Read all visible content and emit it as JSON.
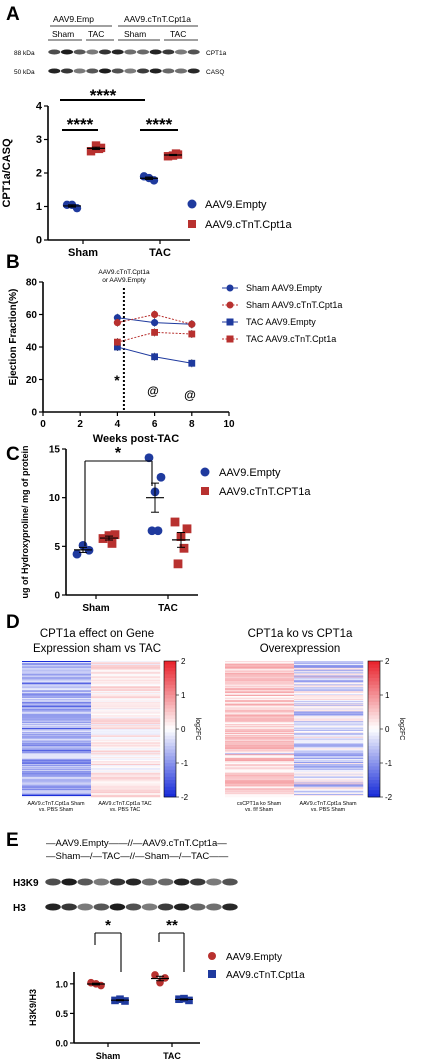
{
  "panels": {
    "A": {
      "letter": "A",
      "blot_group_left": "AAV9.Emp",
      "blot_group_right": "AAV9.cTnT.Cpt1a",
      "blot_subgroups": [
        "Sham",
        "TAC",
        "Sham",
        "TAC"
      ],
      "band_labels_left": [
        "88 kDa",
        "50 kDa"
      ],
      "band_labels_right": [
        "CPT1a",
        "CASQ"
      ],
      "significance": [
        "****",
        "****",
        "****"
      ],
      "legend": [
        "AAV9.Empty",
        "AAV9.cTnT.Cpt1a"
      ]
    },
    "B": {
      "letter": "B",
      "annotation": [
        "AAV9.cTnT.Cpt1a",
        "or AAV9.Empty"
      ],
      "markers": [
        "*",
        "@",
        "@"
      ],
      "legend": [
        "Sham AAV9.Empty",
        "Sham AAV9.cTnT.Cpt1a",
        "TAC AAV9.Empty",
        "TAC AAV9.cTnT.Cpt1a"
      ]
    },
    "C": {
      "letter": "C",
      "significance": "*",
      "legend": [
        "AAV9.Empty",
        "AAV9.cTnT.CPT1a"
      ]
    },
    "D": {
      "letter": "D",
      "heatmap1_title": [
        "CPT1a effect on Gene",
        "Expression sham vs TAC"
      ],
      "heatmap1_cols": [
        [
          "AAV9.cTnT.Cpt1a Sham",
          "vs. PBS Sham"
        ],
        [
          "AAV9.cTnT.Cpt1a TAC",
          "vs. PBS TAC"
        ]
      ],
      "heatmap2_title": [
        "CPT1a ko vs CPT1a",
        "Overexpression"
      ],
      "heatmap2_cols": [
        [
          "csCPT1a ko Sham",
          "vs. f/f Sham"
        ],
        [
          "AAV9.cTnT.Cpt1a Sham",
          "vs. PBS Sham"
        ]
      ],
      "colorbar_ticks": [
        "2",
        "1",
        "0",
        "-1",
        "-2"
      ],
      "colorbar_label": "log2FC"
    },
    "E": {
      "letter": "E",
      "blot_header_top": "—AAV9.Empty——//—AAV9.cTnT.Cpt1a—",
      "blot_header_bottom": "—Sham—/—TAC—//—Sham—/—TAC——",
      "band_labels": [
        "H3K9",
        "H3"
      ],
      "significance": [
        "*",
        "**"
      ],
      "legend": [
        "AAV9.Empty",
        "AAV9.cTnT.Cpt1a"
      ]
    }
  },
  "colors": {
    "empty": "#1f3a9e",
    "cpt1a": "#b8312f",
    "heat_high": "#e8202a",
    "heat_low": "#1428d8"
  },
  "chart_data": [
    {
      "id": "A",
      "type": "scatter",
      "categories": [
        "Sham",
        "TAC"
      ],
      "series": [
        {
          "name": "AAV9.Empty",
          "values": [
            [
              1.05,
              0.95,
              1.05
            ],
            [
              1.9,
              1.78,
              1.85
            ]
          ]
        },
        {
          "name": "AAV9.cTnT.Cpt1a",
          "values": [
            [
              2.65,
              2.75,
              2.82,
              2.72
            ],
            [
              2.5,
              2.55,
              2.52,
              2.58
            ]
          ]
        }
      ],
      "ylabel": "CPT1a/CASQ",
      "ylim": [
        0,
        4
      ],
      "yticks": [
        "0",
        "1",
        "2",
        "3",
        "4"
      ]
    },
    {
      "id": "B",
      "type": "line",
      "x": [
        4,
        6,
        8
      ],
      "series": [
        {
          "name": "Sham AAV9.Empty",
          "values": [
            58,
            55,
            54
          ]
        },
        {
          "name": "Sham AAV9.cTnT.Cpt1a",
          "values": [
            55,
            60,
            54
          ]
        },
        {
          "name": "TAC AAV9.Empty",
          "values": [
            40,
            34,
            30
          ]
        },
        {
          "name": "TAC AAV9.cTnT.Cpt1a",
          "values": [
            43,
            49,
            48
          ]
        }
      ],
      "xlabel": "Weeks post-TAC",
      "ylabel": "Ejection Fraction(%)",
      "xlim": [
        0,
        10
      ],
      "ylim": [
        0,
        80
      ],
      "xticks": [
        "0",
        "2",
        "4",
        "6",
        "8",
        "10"
      ],
      "yticks": [
        "0",
        "20",
        "40",
        "60",
        "80"
      ]
    },
    {
      "id": "C",
      "type": "scatter",
      "categories": [
        "Sham",
        "TAC"
      ],
      "series": [
        {
          "name": "AAV9.Empty",
          "values": [
            [
              4.2,
              4.6,
              5.1
            ],
            [
              14.1,
              12.1,
              10.6,
              6.6,
              6.6
            ]
          ]
        },
        {
          "name": "AAV9.cTnT.CPT1a",
          "values": [
            [
              5.8,
              6.2,
              6.1,
              5.3
            ],
            [
              7.5,
              6.8,
              6.0,
              4.8,
              3.2
            ]
          ]
        }
      ],
      "ylabel": "ug of Hydroxyproline/ mg of protein",
      "ylim": [
        0,
        15
      ],
      "yticks": [
        "0",
        "5",
        "10",
        "15"
      ]
    },
    {
      "id": "D1",
      "type": "heatmap",
      "columns": [
        "AAV9.cTnT.Cpt1a Sham vs. PBS Sham",
        "AAV9.cTnT.Cpt1a TAC vs. PBS TAC"
      ],
      "zlim": [
        -2,
        2
      ],
      "zlabel": "log2FC"
    },
    {
      "id": "D2",
      "type": "heatmap",
      "columns": [
        "csCPT1a ko Sham vs. f/f Sham",
        "AAV9.cTnT.Cpt1a Sham vs. PBS Sham"
      ],
      "zlim": [
        -2,
        2
      ],
      "zlabel": "log2FC"
    },
    {
      "id": "E",
      "type": "scatter",
      "categories": [
        "Sham",
        "TAC"
      ],
      "series": [
        {
          "name": "AAV9.Empty",
          "values": [
            [
              1.02,
              0.97,
              1.0
            ],
            [
              1.15,
              1.1,
              1.02
            ]
          ]
        },
        {
          "name": "AAV9.cTnT.Cpt1a",
          "values": [
            [
              0.72,
              0.71,
              0.74
            ],
            [
              0.74,
              0.72,
              0.75
            ]
          ]
        }
      ],
      "ylabel": "H3K9/H3",
      "ylim": [
        0,
        1.2
      ],
      "yticks": [
        "0.0",
        "0.5",
        "1.0"
      ]
    }
  ]
}
